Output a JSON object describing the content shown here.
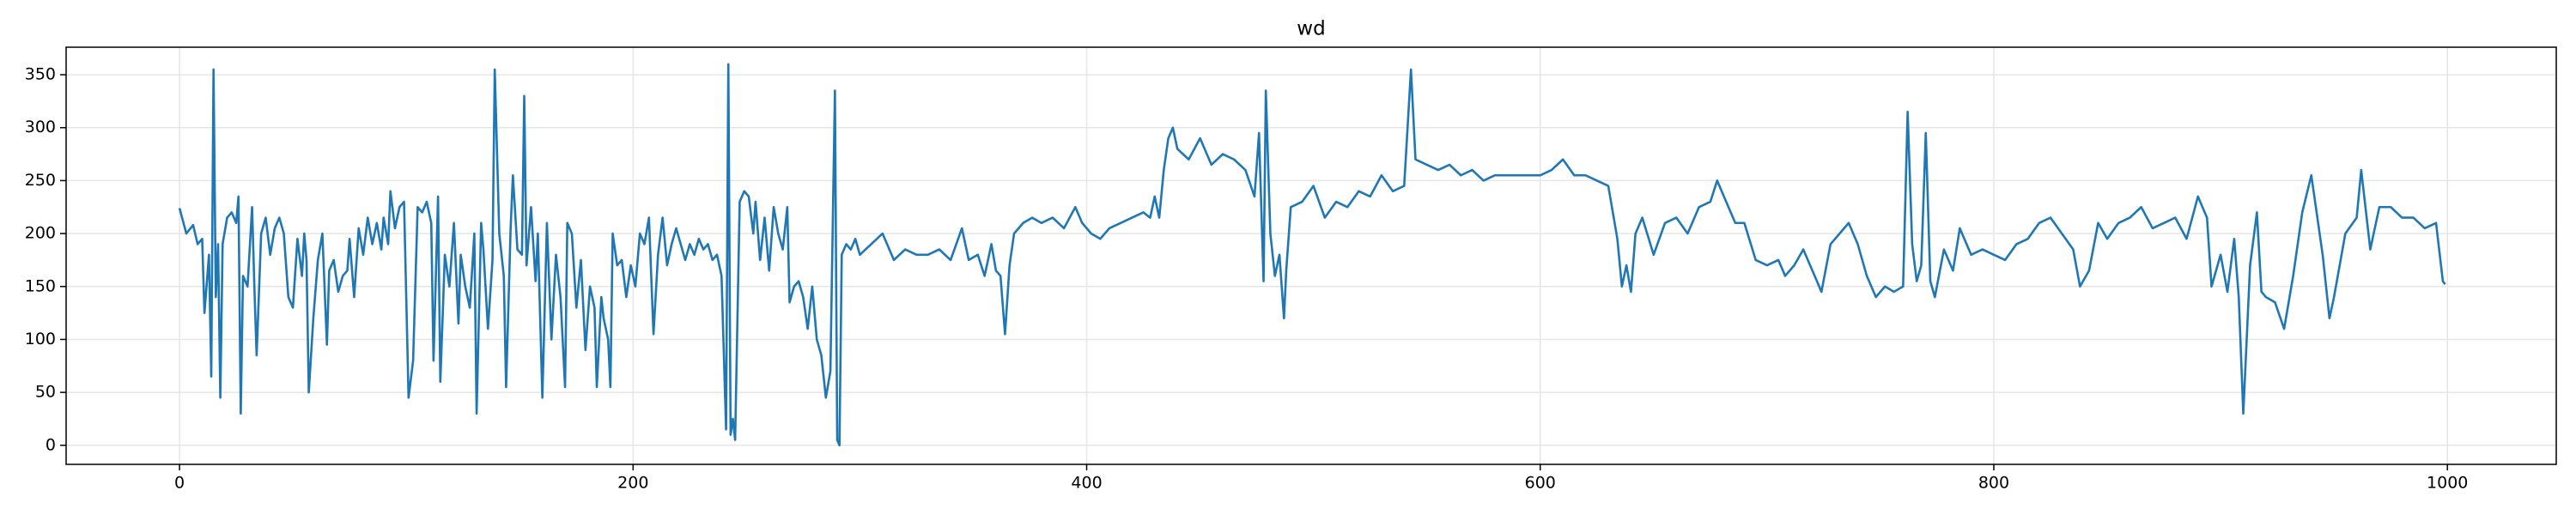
{
  "chart_data": {
    "type": "line",
    "title": "wd",
    "x": [
      0,
      3,
      6,
      8,
      10,
      11,
      13,
      14,
      15,
      16,
      17,
      18,
      19,
      21,
      23,
      25,
      26,
      27,
      28,
      30,
      32,
      33,
      34,
      36,
      38,
      40,
      42,
      44,
      46,
      48,
      50,
      52,
      54,
      55,
      56,
      57,
      59,
      61,
      63,
      65,
      66,
      68,
      70,
      72,
      74,
      75,
      77,
      79,
      81,
      83,
      85,
      87,
      89,
      90,
      92,
      93,
      95,
      97,
      99,
      101,
      103,
      105,
      107,
      109,
      111,
      112,
      114,
      115,
      117,
      119,
      121,
      123,
      124,
      126,
      128,
      130,
      131,
      133,
      134,
      136,
      138,
      139,
      141,
      143,
      144,
      146,
      147,
      149,
      151,
      152,
      153,
      155,
      157,
      158,
      160,
      162,
      164,
      166,
      168,
      170,
      171,
      173,
      175,
      177,
      179,
      181,
      183,
      184,
      186,
      187,
      189,
      190,
      191,
      193,
      195,
      197,
      199,
      201,
      203,
      205,
      207,
      209,
      211,
      213,
      215,
      217,
      219,
      221,
      223,
      225,
      227,
      229,
      231,
      233,
      235,
      237,
      239,
      241,
      242,
      243,
      244,
      245,
      247,
      249,
      251,
      253,
      254,
      256,
      258,
      260,
      262,
      264,
      266,
      268,
      269,
      271,
      273,
      275,
      277,
      279,
      281,
      283,
      285,
      287,
      289,
      290,
      291,
      292,
      294,
      296,
      298,
      300,
      305,
      310,
      315,
      320,
      325,
      330,
      335,
      340,
      345,
      348,
      352,
      355,
      358,
      360,
      362,
      364,
      366,
      368,
      372,
      376,
      380,
      385,
      390,
      395,
      398,
      402,
      406,
      410,
      415,
      420,
      425,
      428,
      430,
      432,
      434,
      436,
      438,
      440,
      445,
      450,
      455,
      460,
      465,
      470,
      474,
      476,
      478,
      479,
      481,
      483,
      485,
      487,
      488,
      490,
      495,
      500,
      505,
      510,
      515,
      520,
      525,
      530,
      535,
      540,
      543,
      545,
      550,
      555,
      560,
      565,
      570,
      575,
      580,
      590,
      600,
      605,
      610,
      615,
      620,
      625,
      630,
      634,
      636,
      638,
      640,
      642,
      645,
      650,
      655,
      660,
      665,
      670,
      675,
      678,
      682,
      686,
      690,
      695,
      700,
      705,
      708,
      712,
      716,
      720,
      724,
      728,
      732,
      736,
      740,
      744,
      748,
      752,
      756,
      760,
      762,
      764,
      766,
      768,
      770,
      772,
      774,
      778,
      782,
      785,
      790,
      795,
      800,
      805,
      810,
      815,
      820,
      825,
      830,
      835,
      838,
      842,
      846,
      850,
      855,
      860,
      865,
      870,
      875,
      880,
      885,
      890,
      894,
      896,
      900,
      903,
      906,
      908,
      910,
      913,
      916,
      918,
      920,
      924,
      928,
      932,
      936,
      940,
      945,
      948,
      950,
      955,
      960,
      962,
      966,
      970,
      975,
      980,
      985,
      990,
      995,
      998,
      999
    ],
    "values": [
      224,
      200,
      208,
      190,
      195,
      125,
      180,
      65,
      355,
      140,
      190,
      45,
      190,
      215,
      220,
      210,
      235,
      30,
      160,
      150,
      225,
      150,
      85,
      200,
      215,
      180,
      205,
      215,
      200,
      140,
      130,
      195,
      160,
      200,
      175,
      50,
      120,
      175,
      200,
      95,
      165,
      175,
      145,
      160,
      165,
      195,
      140,
      205,
      180,
      215,
      190,
      210,
      185,
      215,
      190,
      240,
      205,
      225,
      230,
      45,
      80,
      225,
      220,
      230,
      210,
      80,
      235,
      60,
      180,
      150,
      210,
      115,
      180,
      150,
      130,
      200,
      30,
      210,
      185,
      110,
      175,
      355,
      200,
      160,
      55,
      205,
      255,
      185,
      180,
      330,
      170,
      225,
      155,
      200,
      45,
      210,
      100,
      180,
      140,
      55,
      210,
      200,
      130,
      175,
      90,
      150,
      130,
      55,
      140,
      120,
      100,
      55,
      200,
      170,
      175,
      140,
      170,
      150,
      200,
      190,
      215,
      105,
      180,
      215,
      170,
      190,
      205,
      190,
      175,
      190,
      180,
      195,
      185,
      190,
      175,
      180,
      160,
      15,
      360,
      10,
      25,
      5,
      230,
      240,
      235,
      200,
      230,
      175,
      215,
      165,
      225,
      200,
      185,
      225,
      135,
      150,
      155,
      140,
      110,
      150,
      100,
      85,
      45,
      70,
      335,
      5,
      0,
      180,
      190,
      185,
      195,
      180,
      190,
      200,
      175,
      185,
      180,
      180,
      185,
      175,
      205,
      175,
      180,
      160,
      190,
      165,
      160,
      105,
      170,
      200,
      210,
      215,
      210,
      215,
      205,
      225,
      210,
      200,
      195,
      205,
      210,
      215,
      220,
      215,
      235,
      215,
      260,
      290,
      300,
      280,
      270,
      290,
      265,
      275,
      270,
      260,
      235,
      295,
      155,
      335,
      200,
      160,
      180,
      120,
      165,
      225,
      230,
      245,
      215,
      230,
      225,
      240,
      235,
      255,
      240,
      245,
      355,
      270,
      265,
      260,
      265,
      255,
      260,
      250,
      255,
      255,
      255,
      260,
      270,
      255,
      255,
      250,
      245,
      195,
      150,
      170,
      145,
      200,
      215,
      180,
      210,
      215,
      200,
      225,
      230,
      250,
      230,
      210,
      210,
      175,
      170,
      175,
      160,
      170,
      185,
      165,
      145,
      190,
      200,
      210,
      190,
      160,
      140,
      150,
      145,
      150,
      315,
      190,
      155,
      170,
      295,
      155,
      140,
      185,
      165,
      205,
      180,
      185,
      180,
      175,
      190,
      195,
      210,
      215,
      200,
      185,
      150,
      165,
      210,
      195,
      210,
      215,
      225,
      205,
      210,
      215,
      195,
      235,
      215,
      150,
      180,
      145,
      195,
      140,
      30,
      170,
      220,
      145,
      140,
      135,
      110,
      160,
      220,
      255,
      180,
      120,
      140,
      200,
      215,
      260,
      185,
      225,
      225,
      215,
      215,
      205,
      210,
      155,
      152
    ],
    "color": "#1f77b4",
    "xlim": [
      -50,
      1048
    ],
    "ylim": [
      -18,
      376
    ],
    "xticks": [
      0,
      200,
      400,
      600,
      800,
      1000
    ],
    "yticks": [
      0,
      50,
      100,
      150,
      200,
      250,
      300,
      350
    ],
    "grid": true
  }
}
